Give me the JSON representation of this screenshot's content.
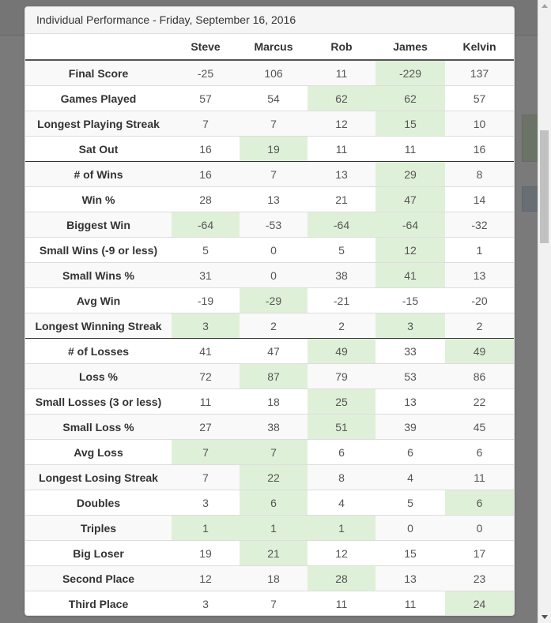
{
  "panel": {
    "title": "Individual Performance - Friday, September 16, 2016"
  },
  "table": {
    "columns": [
      "",
      "Steve",
      "Marcus",
      "Rob",
      "James",
      "Kelvin"
    ],
    "rows": [
      {
        "label": "Final Score",
        "values": [
          "-25",
          "106",
          "11",
          "-229",
          "137"
        ],
        "highlight": [
          false,
          false,
          false,
          true,
          false
        ]
      },
      {
        "label": "Games Played",
        "values": [
          "57",
          "54",
          "62",
          "62",
          "57"
        ],
        "highlight": [
          false,
          false,
          true,
          true,
          false
        ]
      },
      {
        "label": "Longest Playing Streak",
        "values": [
          "7",
          "7",
          "12",
          "15",
          "10"
        ],
        "highlight": [
          false,
          false,
          false,
          true,
          false
        ]
      },
      {
        "label": "Sat Out",
        "values": [
          "16",
          "19",
          "11",
          "11",
          "16"
        ],
        "highlight": [
          false,
          true,
          false,
          false,
          false
        ]
      },
      {
        "label": "# of Wins",
        "values": [
          "16",
          "7",
          "13",
          "29",
          "8"
        ],
        "highlight": [
          false,
          false,
          false,
          true,
          false
        ],
        "section_start": true
      },
      {
        "label": "Win %",
        "values": [
          "28",
          "13",
          "21",
          "47",
          "14"
        ],
        "highlight": [
          false,
          false,
          false,
          true,
          false
        ]
      },
      {
        "label": "Biggest Win",
        "values": [
          "-64",
          "-53",
          "-64",
          "-64",
          "-32"
        ],
        "highlight": [
          true,
          false,
          true,
          true,
          false
        ]
      },
      {
        "label": "Small Wins (-9 or less)",
        "values": [
          "5",
          "0",
          "5",
          "12",
          "1"
        ],
        "highlight": [
          false,
          false,
          false,
          true,
          false
        ]
      },
      {
        "label": "Small Wins %",
        "values": [
          "31",
          "0",
          "38",
          "41",
          "13"
        ],
        "highlight": [
          false,
          false,
          false,
          true,
          false
        ]
      },
      {
        "label": "Avg Win",
        "values": [
          "-19",
          "-29",
          "-21",
          "-15",
          "-20"
        ],
        "highlight": [
          false,
          true,
          false,
          false,
          false
        ]
      },
      {
        "label": "Longest Winning Streak",
        "values": [
          "3",
          "2",
          "2",
          "3",
          "2"
        ],
        "highlight": [
          true,
          false,
          false,
          true,
          false
        ]
      },
      {
        "label": "# of Losses",
        "values": [
          "41",
          "47",
          "49",
          "33",
          "49"
        ],
        "highlight": [
          false,
          false,
          true,
          false,
          true
        ],
        "section_start": true
      },
      {
        "label": "Loss %",
        "values": [
          "72",
          "87",
          "79",
          "53",
          "86"
        ],
        "highlight": [
          false,
          true,
          false,
          false,
          false
        ]
      },
      {
        "label": "Small Losses (3 or less)",
        "values": [
          "11",
          "18",
          "25",
          "13",
          "22"
        ],
        "highlight": [
          false,
          false,
          true,
          false,
          false
        ]
      },
      {
        "label": "Small Loss %",
        "values": [
          "27",
          "38",
          "51",
          "39",
          "45"
        ],
        "highlight": [
          false,
          false,
          true,
          false,
          false
        ]
      },
      {
        "label": "Avg Loss",
        "values": [
          "7",
          "7",
          "6",
          "6",
          "6"
        ],
        "highlight": [
          true,
          true,
          false,
          false,
          false
        ]
      },
      {
        "label": "Longest Losing Streak",
        "values": [
          "7",
          "22",
          "8",
          "4",
          "11"
        ],
        "highlight": [
          false,
          true,
          false,
          false,
          false
        ]
      },
      {
        "label": "Doubles",
        "values": [
          "3",
          "6",
          "4",
          "5",
          "6"
        ],
        "highlight": [
          false,
          true,
          false,
          false,
          true
        ]
      },
      {
        "label": "Triples",
        "values": [
          "1",
          "1",
          "1",
          "0",
          "0"
        ],
        "highlight": [
          true,
          true,
          true,
          false,
          false
        ]
      },
      {
        "label": "Big Loser",
        "values": [
          "19",
          "21",
          "12",
          "15",
          "17"
        ],
        "highlight": [
          false,
          true,
          false,
          false,
          false
        ]
      },
      {
        "label": "Second Place",
        "values": [
          "12",
          "18",
          "28",
          "13",
          "23"
        ],
        "highlight": [
          false,
          false,
          true,
          false,
          false
        ]
      },
      {
        "label": "Third Place",
        "values": [
          "3",
          "7",
          "11",
          "11",
          "24"
        ],
        "highlight": [
          false,
          false,
          false,
          false,
          true
        ]
      }
    ]
  },
  "colors": {
    "highlight": "#dff0d8",
    "stripe": "#f9f9f9",
    "overlay": "rgba(0,0,0,0.52)"
  },
  "scrollbar": {
    "icons": [
      "scroll-up-arrow-icon",
      "scroll-down-arrow-icon"
    ]
  }
}
